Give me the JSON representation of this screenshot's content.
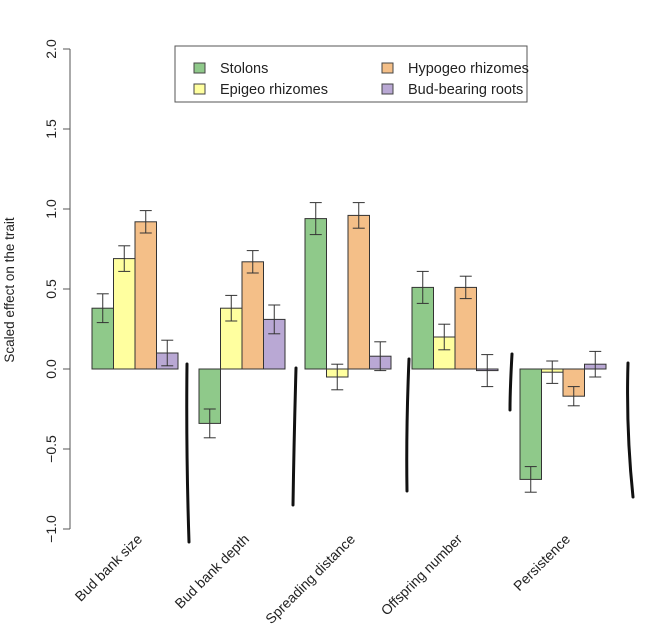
{
  "chart_data": {
    "type": "bar",
    "title": "",
    "xlabel": "",
    "ylabel": "Scaled effect on the trait",
    "ylim": [
      -1.0,
      2.0
    ],
    "yticks": [
      "−1.0",
      "−0.5",
      "0.0",
      "0.5",
      "1.0",
      "1.5",
      "2.0"
    ],
    "ytick_values": [
      -1.0,
      -0.5,
      0.0,
      0.5,
      1.0,
      1.5,
      2.0
    ],
    "grid": false,
    "legend_position": "top-center",
    "categories": [
      "Bud bank size",
      "Bud bank depth",
      "Spreading distance",
      "Offspring number",
      "Persistence"
    ],
    "series": [
      {
        "name": "Stolons",
        "color": "#8fc98a",
        "values": [
          0.38,
          -0.34,
          0.94,
          0.51,
          -0.69
        ],
        "errors": [
          0.09,
          0.09,
          0.1,
          0.1,
          0.08
        ]
      },
      {
        "name": "Epigeo rhizomes",
        "color": "#ffff9f",
        "values": [
          0.69,
          0.38,
          -0.05,
          0.2,
          -0.02
        ],
        "errors": [
          0.08,
          0.08,
          0.08,
          0.08,
          0.07
        ]
      },
      {
        "name": "Hypogeo rhizomes",
        "color": "#f4bf88",
        "values": [
          0.92,
          0.67,
          0.96,
          0.51,
          -0.17
        ],
        "errors": [
          0.07,
          0.07,
          0.08,
          0.07,
          0.06
        ]
      },
      {
        "name": "Bud-bearing roots",
        "color": "#b9a8d4",
        "values": [
          0.1,
          0.31,
          0.08,
          -0.01,
          0.03
        ],
        "errors": [
          0.08,
          0.09,
          0.09,
          0.1,
          0.08
        ]
      }
    ],
    "legend_order": [
      "Stolons",
      "Epigeo rhizomes",
      "Hypogeo rhizomes",
      "Bud-bearing roots"
    ]
  }
}
